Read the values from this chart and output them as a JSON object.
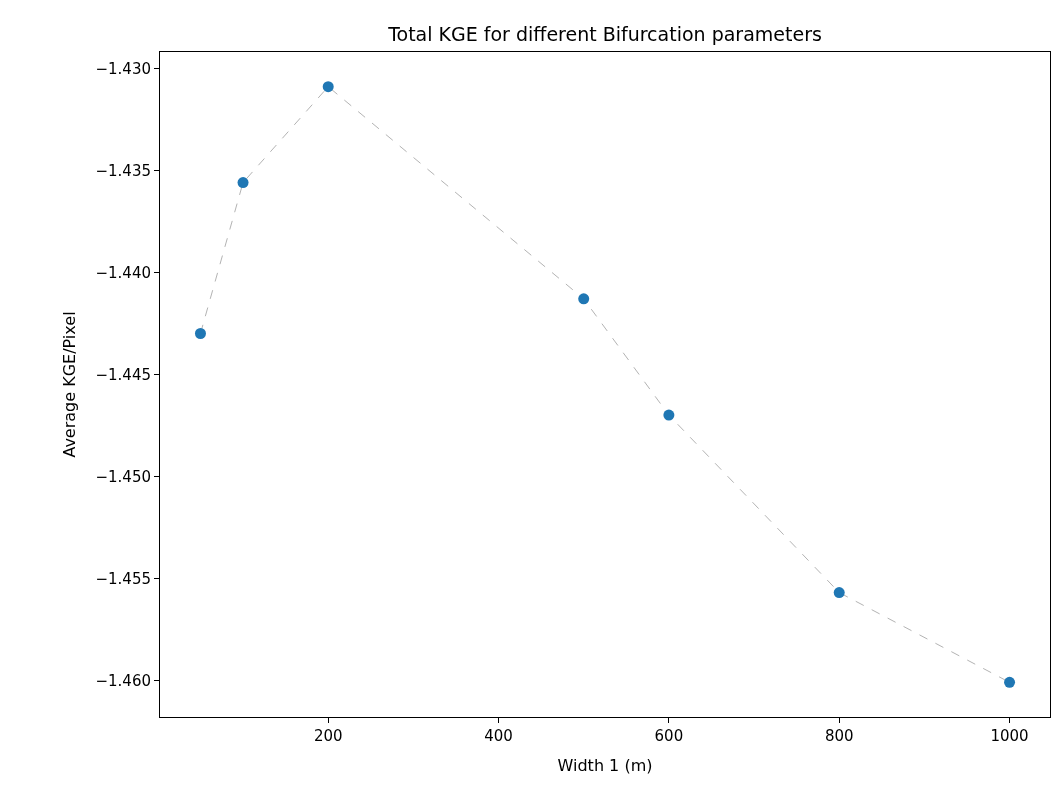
{
  "chart_data": {
    "type": "scatter",
    "title": "Total KGE for different Bifurcation parameters",
    "xlabel": "Width 1 (m)",
    "ylabel": "Average KGE/Pixel",
    "x": [
      50,
      100,
      200,
      500,
      600,
      800,
      1000
    ],
    "series": [
      {
        "type": "line",
        "color": "#a0a0a0",
        "line_style": "dashed",
        "marker": "none",
        "values": [
          -1.443,
          -1.4356,
          -1.4309,
          -1.4413,
          -1.447,
          -1.4557,
          -1.4601
        ]
      },
      {
        "color": "#1f77b4",
        "values": [
          -1.443,
          -1.4356,
          -1.4309,
          -1.4413,
          -1.447,
          -1.4557,
          -1.4601
        ]
      }
    ],
    "xlim": [
      2.5,
      1047.5
    ],
    "xticks": [
      200,
      400,
      600,
      800,
      1000
    ],
    "ylim": [
      -1.4618,
      -1.4292
    ],
    "yticks": [
      {
        "value": -1.43,
        "label": "−1.430"
      },
      {
        "value": -1.435,
        "label": "−1.435"
      },
      {
        "value": -1.44,
        "label": "−1.440"
      },
      {
        "value": -1.445,
        "label": "−1.445"
      },
      {
        "value": -1.45,
        "label": "−1.450"
      },
      {
        "value": -1.455,
        "label": "−1.455"
      },
      {
        "value": -1.46,
        "label": "−1.460"
      }
    ],
    "grid": false,
    "legend": false,
    "marker": "circle"
  }
}
